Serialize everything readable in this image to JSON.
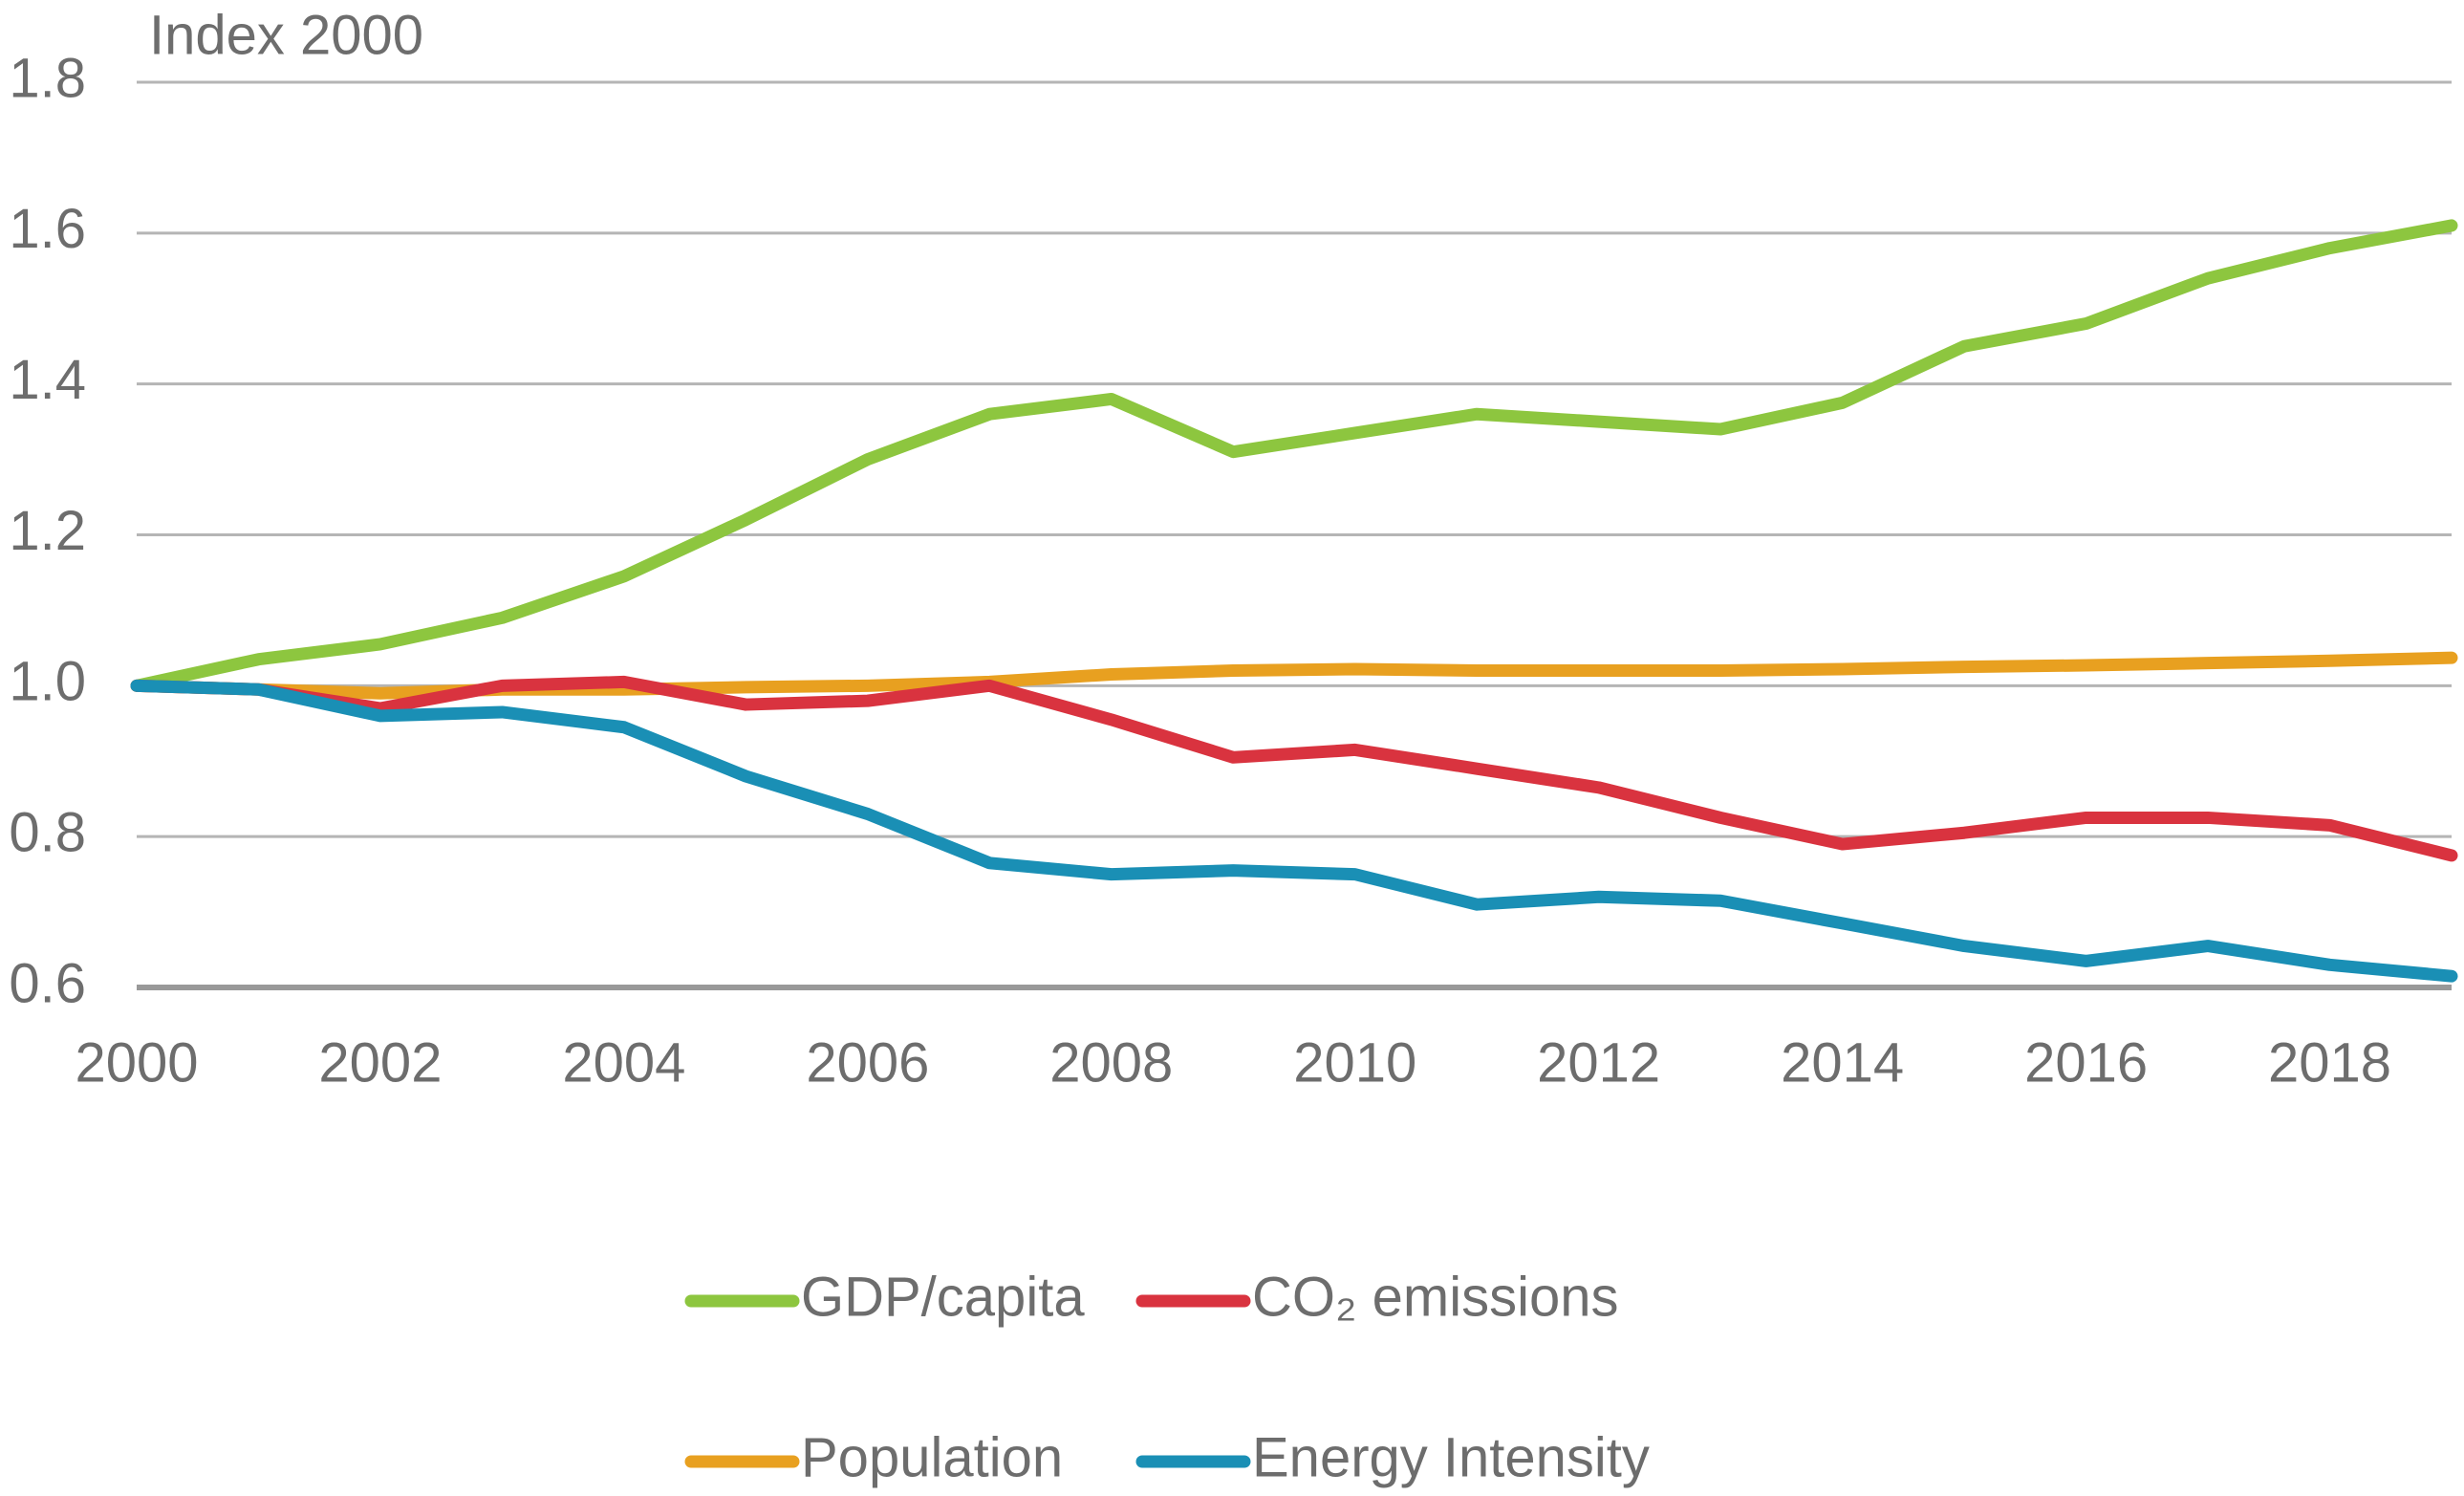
{
  "chart_data": {
    "type": "line",
    "y_label": "Index 2000",
    "x": [
      2000,
      2001,
      2002,
      2003,
      2004,
      2005,
      2006,
      2007,
      2008,
      2009,
      2010,
      2011,
      2012,
      2013,
      2014,
      2015,
      2016,
      2017,
      2018,
      2019
    ],
    "series": [
      {
        "name": "GDP/capita",
        "color": "#8dc63f",
        "values": [
          1.0,
          1.035,
          1.055,
          1.09,
          1.145,
          1.22,
          1.3,
          1.36,
          1.38,
          1.31,
          1.335,
          1.36,
          1.35,
          1.34,
          1.375,
          1.45,
          1.48,
          1.54,
          1.58,
          1.61
        ]
      },
      {
        "name": "CO₂ emissions",
        "color": "#d9333f",
        "values": [
          1.0,
          0.995,
          0.97,
          1.0,
          1.005,
          0.975,
          0.98,
          1.0,
          0.955,
          0.905,
          0.915,
          0.89,
          0.865,
          0.825,
          0.79,
          0.805,
          0.825,
          0.825,
          0.815,
          0.775
        ]
      },
      {
        "name": "Population",
        "color": "#e8a020",
        "values": [
          1.0,
          0.995,
          0.99,
          0.995,
          0.995,
          0.998,
          1.0,
          1.005,
          1.015,
          1.02,
          1.022,
          1.02,
          1.02,
          1.02,
          1.022,
          1.025,
          1.027,
          1.03,
          1.033,
          1.037
        ]
      },
      {
        "name": "Energy Intensity",
        "color": "#1a8fb5",
        "values": [
          1.0,
          0.995,
          0.96,
          0.965,
          0.945,
          0.88,
          0.83,
          0.765,
          0.75,
          0.755,
          0.75,
          0.71,
          0.72,
          0.715,
          0.685,
          0.655,
          0.635,
          0.655,
          0.63,
          0.615
        ]
      }
    ],
    "xlim": [
      2000,
      2019
    ],
    "xticks": [
      2000,
      2002,
      2004,
      2006,
      2008,
      2010,
      2012,
      2014,
      2016,
      2018
    ],
    "ylim": [
      0.6,
      1.8
    ],
    "yticks": [
      0.6,
      0.8,
      {
        "value": 1,
        "label": "1.0"
      },
      1.2,
      1.4,
      1.6,
      1.8
    ],
    "grid": true
  }
}
